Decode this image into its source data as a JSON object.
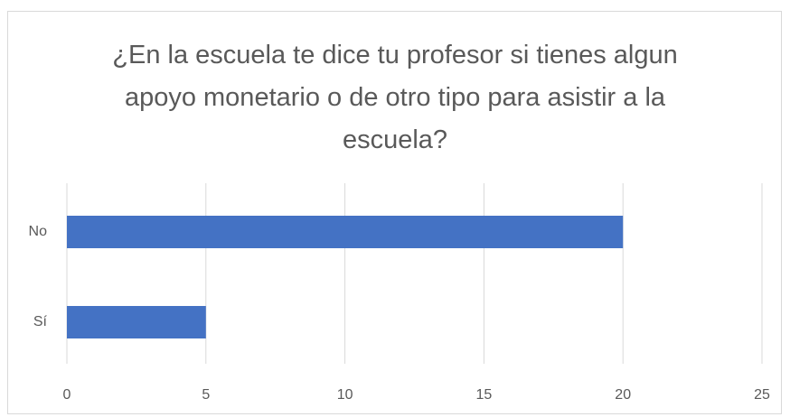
{
  "chart_data": {
    "type": "bar",
    "orientation": "horizontal",
    "title": "¿En la escuela te dice tu profesor si tienes algun apoyo monetario o de otro tipo para asistir a la escuela?",
    "categories": [
      "No",
      "Sí"
    ],
    "values": [
      20,
      5
    ],
    "color": "#4472c4",
    "xlim": [
      0,
      25
    ],
    "xticks": [
      0,
      5,
      10,
      15,
      20,
      25
    ],
    "grid": true
  }
}
